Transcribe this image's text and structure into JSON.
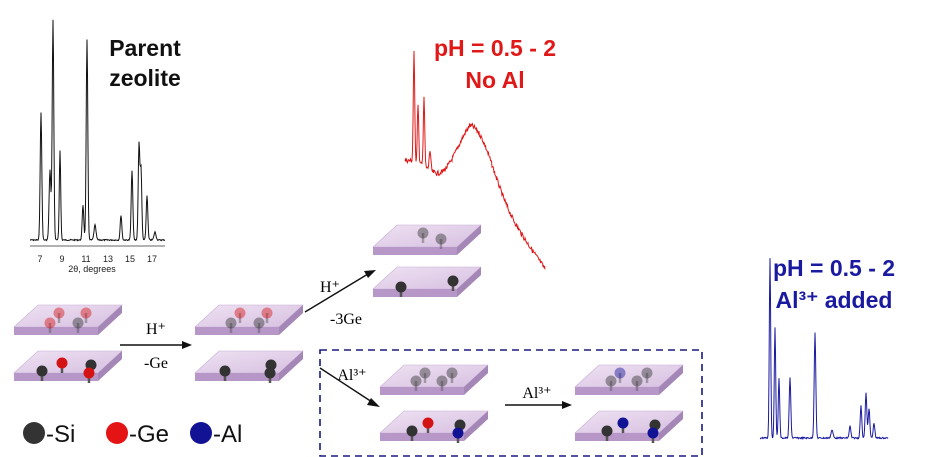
{
  "parent": {
    "label": [
      "Parent",
      "zeolite"
    ],
    "x_ticks": [
      "7",
      "9",
      "11",
      "13",
      "15",
      "17"
    ],
    "x_axis_label": "2θ, degrees"
  },
  "no_al": {
    "label": [
      "pH = 0.5 - 2",
      "No Al"
    ]
  },
  "al_added": {
    "label": [
      "pH = 0.5 - 2",
      "Al³⁺ added"
    ]
  },
  "steps": {
    "first": {
      "above": "H⁺",
      "below": "-Ge"
    },
    "acid": {
      "above": "H⁺",
      "below": "-3Ge"
    },
    "al_first": {
      "above": "Al³⁺"
    },
    "al_second": {
      "above": "Al³⁺"
    }
  },
  "legend": [
    "-Si",
    "-Ge",
    "-Al"
  ]
}
